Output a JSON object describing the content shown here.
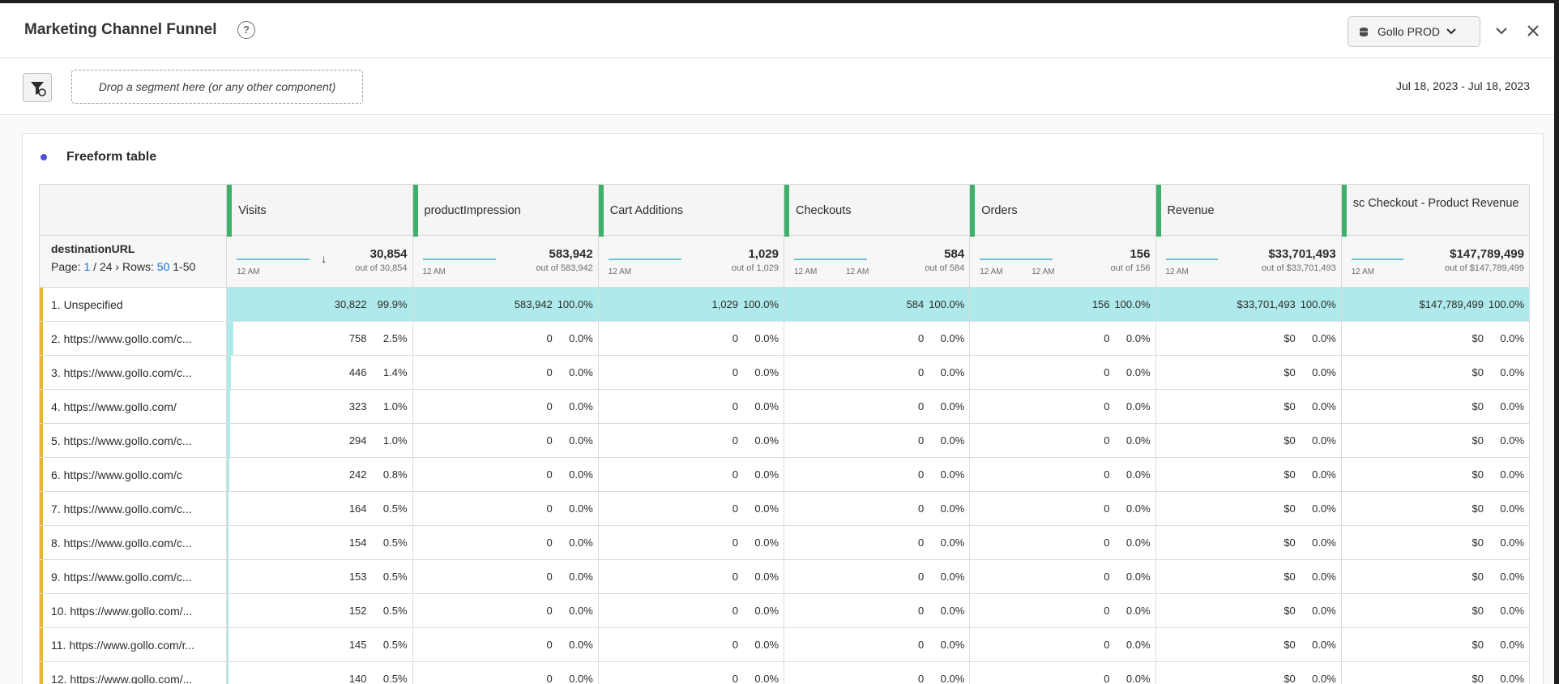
{
  "panel": {
    "title": "Marketing Channel Funnel",
    "report_suite": "Gollo PROD",
    "segment_drop_placeholder": "Drop a segment here (or any other component)",
    "date_range": "Jul 18, 2023 - Jul 18, 2023"
  },
  "viz": {
    "title": "Freeform table",
    "dimension": "destinationURL",
    "pager": {
      "page_label": "Page:",
      "page": "1",
      "pages": "/ 24",
      "rows_label": "Rows:",
      "rows": "50",
      "range": "1-50"
    }
  },
  "columns": [
    {
      "name": "Visits",
      "total": "30,854",
      "out_of": "out of 30,854",
      "tick_a": "12 AM",
      "tick_b": ""
    },
    {
      "name": "productImpression",
      "total": "583,942",
      "out_of": "out of 583,942",
      "tick_a": "12 AM",
      "tick_b": ""
    },
    {
      "name": "Cart Additions",
      "total": "1,029",
      "out_of": "out of 1,029",
      "tick_a": "12 AM",
      "tick_b": ""
    },
    {
      "name": "Checkouts",
      "total": "584",
      "out_of": "out of 584",
      "tick_a": "12 AM",
      "tick_b": "12 AM"
    },
    {
      "name": "Orders",
      "total": "156",
      "out_of": "out of 156",
      "tick_a": "12 AM",
      "tick_b": "12 AM"
    },
    {
      "name": "Revenue",
      "total": "$33,701,493",
      "out_of": "out of $33,701,493",
      "tick_a": "12 AM",
      "tick_b": ""
    },
    {
      "name": "sc Checkout - Product Revenue",
      "total": "$147,789,499",
      "out_of": "out of $147,789,499",
      "tick_a": "12 AM",
      "tick_b": ""
    }
  ],
  "rows": [
    {
      "label": "1.  Unspecified",
      "visits": "30,822",
      "visits_pct": "99.9%",
      "visits_share": 0.999,
      "cells": [
        [
          "583,942",
          "100.0%"
        ],
        [
          "1,029",
          "100.0%"
        ],
        [
          "584",
          "100.0%"
        ],
        [
          "156",
          "100.0%"
        ],
        [
          "$33,701,493",
          "100.0%"
        ],
        [
          "$147,789,499",
          "100.0%"
        ]
      ]
    },
    {
      "label": "2.  https://www.gollo.com/c...",
      "visits": "758",
      "visits_pct": "2.5%",
      "visits_share": 0.025,
      "cells": [
        [
          "0",
          "0.0%"
        ],
        [
          "0",
          "0.0%"
        ],
        [
          "0",
          "0.0%"
        ],
        [
          "0",
          "0.0%"
        ],
        [
          "$0",
          "0.0%"
        ],
        [
          "$0",
          "0.0%"
        ]
      ]
    },
    {
      "label": "3.  https://www.gollo.com/c...",
      "visits": "446",
      "visits_pct": "1.4%",
      "visits_share": 0.014,
      "cells": [
        [
          "0",
          "0.0%"
        ],
        [
          "0",
          "0.0%"
        ],
        [
          "0",
          "0.0%"
        ],
        [
          "0",
          "0.0%"
        ],
        [
          "$0",
          "0.0%"
        ],
        [
          "$0",
          "0.0%"
        ]
      ]
    },
    {
      "label": "4.  https://www.gollo.com/",
      "visits": "323",
      "visits_pct": "1.0%",
      "visits_share": 0.01,
      "cells": [
        [
          "0",
          "0.0%"
        ],
        [
          "0",
          "0.0%"
        ],
        [
          "0",
          "0.0%"
        ],
        [
          "0",
          "0.0%"
        ],
        [
          "$0",
          "0.0%"
        ],
        [
          "$0",
          "0.0%"
        ]
      ]
    },
    {
      "label": "5.  https://www.gollo.com/c...",
      "visits": "294",
      "visits_pct": "1.0%",
      "visits_share": 0.01,
      "cells": [
        [
          "0",
          "0.0%"
        ],
        [
          "0",
          "0.0%"
        ],
        [
          "0",
          "0.0%"
        ],
        [
          "0",
          "0.0%"
        ],
        [
          "$0",
          "0.0%"
        ],
        [
          "$0",
          "0.0%"
        ]
      ]
    },
    {
      "label": "6.  https://www.gollo.com/c",
      "visits": "242",
      "visits_pct": "0.8%",
      "visits_share": 0.008,
      "cells": [
        [
          "0",
          "0.0%"
        ],
        [
          "0",
          "0.0%"
        ],
        [
          "0",
          "0.0%"
        ],
        [
          "0",
          "0.0%"
        ],
        [
          "$0",
          "0.0%"
        ],
        [
          "$0",
          "0.0%"
        ]
      ]
    },
    {
      "label": "7.  https://www.gollo.com/c...",
      "visits": "164",
      "visits_pct": "0.5%",
      "visits_share": 0.005,
      "cells": [
        [
          "0",
          "0.0%"
        ],
        [
          "0",
          "0.0%"
        ],
        [
          "0",
          "0.0%"
        ],
        [
          "0",
          "0.0%"
        ],
        [
          "$0",
          "0.0%"
        ],
        [
          "$0",
          "0.0%"
        ]
      ]
    },
    {
      "label": "8.  https://www.gollo.com/c...",
      "visits": "154",
      "visits_pct": "0.5%",
      "visits_share": 0.005,
      "cells": [
        [
          "0",
          "0.0%"
        ],
        [
          "0",
          "0.0%"
        ],
        [
          "0",
          "0.0%"
        ],
        [
          "0",
          "0.0%"
        ],
        [
          "$0",
          "0.0%"
        ],
        [
          "$0",
          "0.0%"
        ]
      ]
    },
    {
      "label": "9.  https://www.gollo.com/c...",
      "visits": "153",
      "visits_pct": "0.5%",
      "visits_share": 0.005,
      "cells": [
        [
          "0",
          "0.0%"
        ],
        [
          "0",
          "0.0%"
        ],
        [
          "0",
          "0.0%"
        ],
        [
          "0",
          "0.0%"
        ],
        [
          "$0",
          "0.0%"
        ],
        [
          "$0",
          "0.0%"
        ]
      ]
    },
    {
      "label": "10.  https://www.gollo.com/...",
      "visits": "152",
      "visits_pct": "0.5%",
      "visits_share": 0.005,
      "cells": [
        [
          "0",
          "0.0%"
        ],
        [
          "0",
          "0.0%"
        ],
        [
          "0",
          "0.0%"
        ],
        [
          "0",
          "0.0%"
        ],
        [
          "$0",
          "0.0%"
        ],
        [
          "$0",
          "0.0%"
        ]
      ]
    },
    {
      "label": "11.  https://www.gollo.com/r...",
      "visits": "145",
      "visits_pct": "0.5%",
      "visits_share": 0.005,
      "cells": [
        [
          "0",
          "0.0%"
        ],
        [
          "0",
          "0.0%"
        ],
        [
          "0",
          "0.0%"
        ],
        [
          "0",
          "0.0%"
        ],
        [
          "$0",
          "0.0%"
        ],
        [
          "$0",
          "0.0%"
        ]
      ]
    },
    {
      "label": "12.  https://www.gollo.com/...",
      "visits": "140",
      "visits_pct": "0.5%",
      "visits_share": 0.005,
      "cells": [
        [
          "0",
          "0.0%"
        ],
        [
          "0",
          "0.0%"
        ],
        [
          "0",
          "0.0%"
        ],
        [
          "0",
          "0.0%"
        ],
        [
          "$0",
          "0.0%"
        ],
        [
          "$0",
          "0.0%"
        ]
      ]
    }
  ],
  "colors": {
    "highlight": "#aee9ec",
    "column_grip": "#3fb06a",
    "row_marker": "#e8b72c",
    "viz_dot": "#5151d3",
    "link_blue": "#1473e6"
  }
}
